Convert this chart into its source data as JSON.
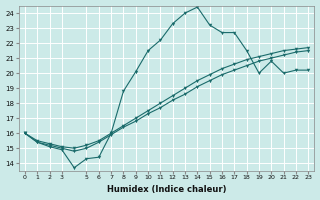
{
  "xlabel": "Humidex (Indice chaleur)",
  "background_color": "#cceae8",
  "line_color": "#1a6b6b",
  "grid_color": "#ffffff",
  "xlim": [
    -0.5,
    23.5
  ],
  "ylim": [
    13.5,
    24.5
  ],
  "xticks": [
    0,
    1,
    2,
    3,
    5,
    6,
    7,
    8,
    9,
    10,
    11,
    12,
    13,
    14,
    15,
    16,
    17,
    18,
    19,
    20,
    21,
    22,
    23
  ],
  "yticks": [
    14,
    15,
    16,
    17,
    18,
    19,
    20,
    21,
    22,
    23,
    24
  ],
  "line1_x": [
    0,
    1,
    2,
    3,
    4,
    5,
    6,
    7,
    8,
    9,
    10,
    11,
    12,
    13,
    14,
    15,
    16,
    17,
    18,
    19,
    20,
    21,
    22,
    23
  ],
  "line1_y": [
    16.0,
    15.4,
    15.1,
    14.9,
    13.7,
    14.3,
    14.4,
    16.0,
    18.8,
    20.1,
    21.5,
    22.2,
    23.3,
    24.0,
    24.4,
    23.2,
    22.7,
    22.7,
    21.5,
    20.0,
    20.8,
    20.0,
    20.2,
    20.2
  ],
  "line2_x": [
    0,
    1,
    2,
    3,
    4,
    5,
    6,
    7,
    8,
    9,
    10,
    11,
    12,
    13,
    14,
    15,
    16,
    17,
    18,
    19,
    20,
    21,
    22,
    23
  ],
  "line2_y": [
    16.0,
    15.5,
    15.3,
    15.1,
    15.0,
    15.2,
    15.5,
    16.0,
    16.5,
    17.0,
    17.5,
    18.0,
    18.5,
    19.0,
    19.5,
    19.9,
    20.3,
    20.6,
    20.9,
    21.1,
    21.3,
    21.5,
    21.6,
    21.7
  ],
  "line3_x": [
    0,
    1,
    2,
    3,
    4,
    5,
    6,
    7,
    8,
    9,
    10,
    11,
    12,
    13,
    14,
    15,
    16,
    17,
    18,
    19,
    20,
    21,
    22,
    23
  ],
  "line3_y": [
    16.0,
    15.4,
    15.2,
    15.0,
    14.8,
    15.0,
    15.4,
    15.9,
    16.4,
    16.8,
    17.3,
    17.7,
    18.2,
    18.6,
    19.1,
    19.5,
    19.9,
    20.2,
    20.5,
    20.8,
    21.0,
    21.2,
    21.4,
    21.5
  ]
}
